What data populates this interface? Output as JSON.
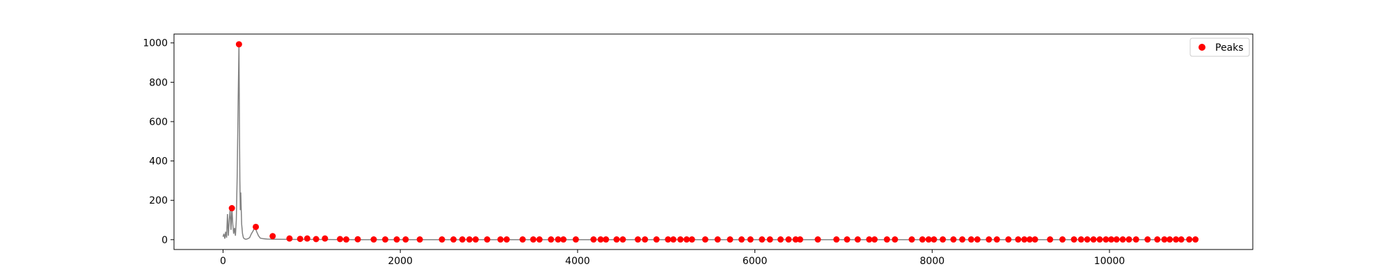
{
  "chart_data": {
    "type": "line",
    "title": "",
    "xlabel": "",
    "ylabel": "",
    "xlim": [
      -553,
      11617
    ],
    "ylim": [
      -50,
      1045
    ],
    "grid": false,
    "legend": {
      "placement": "top-right",
      "entries": [
        "Peaks"
      ]
    },
    "x_ticks": [
      0,
      2000,
      4000,
      6000,
      8000,
      10000
    ],
    "y_ticks": [
      0,
      200,
      400,
      600,
      800,
      1000
    ],
    "x_tick_labels": [
      "0",
      "2000",
      "4000",
      "6000",
      "8000",
      "10000"
    ],
    "y_tick_labels": [
      "0",
      "200",
      "400",
      "600",
      "800",
      "1000"
    ],
    "series": [
      {
        "kind": "line",
        "color": "#808080",
        "x": [
          0,
          10,
          20,
          30,
          40,
          50,
          60,
          70,
          80,
          90,
          100,
          110,
          120,
          130,
          140,
          150,
          160,
          170,
          180,
          185,
          190,
          195,
          200,
          210,
          220,
          230,
          240,
          250,
          260,
          280,
          300,
          320,
          340,
          360,
          380,
          400,
          420,
          450,
          500,
          600,
          800,
          1000,
          1500,
          2000,
          3000,
          4000,
          5000,
          6000,
          7000,
          8000,
          9000,
          10000,
          11000
        ],
        "y": [
          15,
          30,
          5,
          40,
          10,
          130,
          20,
          100,
          150,
          50,
          160,
          80,
          30,
          60,
          20,
          100,
          330,
          680,
          1000,
          600,
          300,
          150,
          240,
          80,
          30,
          10,
          5,
          3,
          2,
          5,
          10,
          30,
          45,
          65,
          40,
          20,
          8,
          5,
          3,
          2,
          1,
          1,
          0,
          0,
          0,
          0,
          0,
          0,
          0,
          0,
          0,
          0,
          0
        ]
      },
      {
        "kind": "scatter",
        "name": "Peaks",
        "color": "#ff0000",
        "x": [
          100,
          180,
          370,
          560,
          750,
          870,
          950,
          1050,
          1150,
          1320,
          1390,
          1520,
          1700,
          1830,
          1960,
          2060,
          2220,
          2470,
          2600,
          2700,
          2780,
          2850,
          2980,
          3130,
          3200,
          3380,
          3500,
          3570,
          3700,
          3780,
          3840,
          3980,
          4180,
          4260,
          4320,
          4440,
          4510,
          4680,
          4760,
          4890,
          5020,
          5080,
          5160,
          5230,
          5290,
          5440,
          5580,
          5720,
          5850,
          5950,
          6080,
          6170,
          6290,
          6380,
          6460,
          6510,
          6710,
          6920,
          7040,
          7160,
          7290,
          7350,
          7490,
          7580,
          7770,
          7890,
          7960,
          8020,
          8120,
          8240,
          8340,
          8440,
          8510,
          8640,
          8730,
          8860,
          8970,
          9040,
          9100,
          9160,
          9330,
          9470,
          9600,
          9680,
          9750,
          9820,
          9890,
          9960,
          10020,
          10080,
          10150,
          10220,
          10300,
          10430,
          10540,
          10620,
          10680,
          10750,
          10810,
          10900,
          10970
        ],
        "y": [
          160,
          993,
          65,
          18,
          6,
          4,
          6,
          3,
          6,
          3,
          1,
          2,
          1,
          1,
          1,
          1,
          1,
          1,
          1,
          1,
          1,
          1,
          1,
          1,
          1,
          1,
          1,
          1,
          1,
          1,
          1,
          1,
          1,
          1,
          1,
          1,
          1,
          1,
          1,
          1,
          1,
          1,
          1,
          1,
          1,
          1,
          1,
          1,
          1,
          1,
          1,
          1,
          1,
          1,
          1,
          1,
          1,
          1,
          1,
          1,
          1,
          1,
          1,
          1,
          1,
          1,
          1,
          1,
          1,
          1,
          1,
          1,
          1,
          1,
          1,
          1,
          1,
          1,
          1,
          1,
          1,
          1,
          1,
          1,
          1,
          1,
          1,
          1,
          1,
          1,
          1,
          1,
          1,
          1,
          1,
          1,
          1,
          1,
          1,
          1,
          1
        ]
      }
    ]
  }
}
